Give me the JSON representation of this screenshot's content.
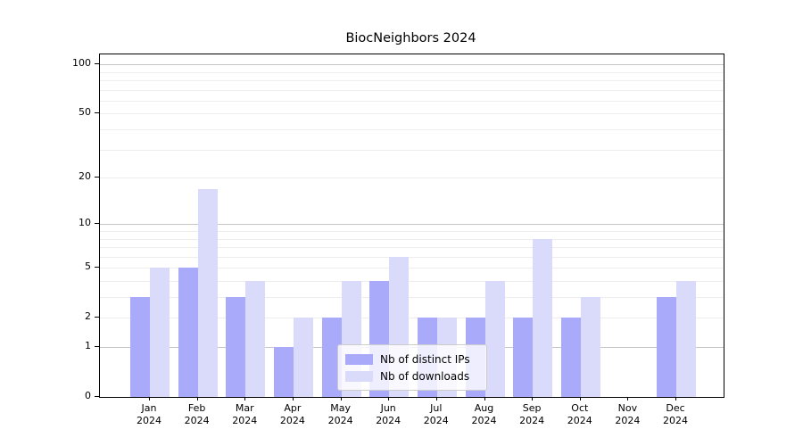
{
  "chart_data": {
    "type": "bar",
    "title": "BiocNeighbors 2024",
    "categories": [
      "Jan",
      "Feb",
      "Mar",
      "Apr",
      "May",
      "Jun",
      "Jul",
      "Aug",
      "Sep",
      "Oct",
      "Nov",
      "Dec"
    ],
    "x_year": "2024",
    "series": [
      {
        "name": "Nb of distinct IPs",
        "color": "#aaaafa",
        "values": [
          3,
          5,
          3,
          1,
          2,
          4,
          2,
          2,
          2,
          2,
          0,
          3
        ]
      },
      {
        "name": "Nb of downloads",
        "color": "#dadafa",
        "values": [
          5,
          17,
          4,
          2,
          4,
          6,
          2,
          4,
          8,
          3,
          0,
          4
        ]
      }
    ],
    "y_axis": {
      "scale": "log1p",
      "ticks": [
        0,
        1,
        2,
        5,
        10,
        20,
        50,
        100
      ],
      "max": 115
    },
    "major_gridlines": [
      1,
      10,
      100
    ],
    "minor_gridlines": [
      2,
      3,
      4,
      5,
      6,
      7,
      8,
      9,
      20,
      30,
      40,
      50,
      60,
      70,
      80,
      90
    ],
    "grid": true,
    "legend_position": "lower center"
  }
}
